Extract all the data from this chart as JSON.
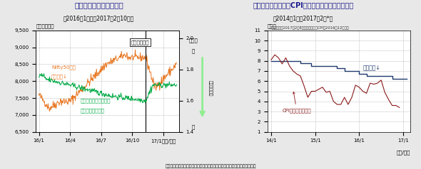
{
  "chart1": {
    "title": "インドの株価指数の推移",
    "subtitle": "（2016年1月初～2017年2月10日）",
    "annotation": "高額紙幣廃止",
    "vline_x": 10.3,
    "nifty_label_line1": "Nifty50指数",
    "nifty_label_line2": "（左軸）↓",
    "rupee_label_line1": "ご参考：インドルピー",
    "rupee_label_line2": "（対円）（右軸）",
    "ylabel_left": "（ポイント）",
    "ylabel_right": "（円）",
    "arrow_label": "インドルピー",
    "arrow_high": "高",
    "arrow_low": "安",
    "xticks": [
      "16/1",
      "16/4",
      "16/7",
      "16/10",
      "17/1（年/月）"
    ],
    "xtick_vals": [
      0,
      3,
      6,
      9,
      12
    ],
    "ylim_left": [
      6500,
      9500
    ],
    "ylim_right": [
      1.4,
      2.05
    ],
    "yticks_left": [
      6500,
      7000,
      7500,
      8000,
      8500,
      9000,
      9500
    ],
    "yticks_right": [
      1.4,
      1.6,
      1.8,
      2.0
    ],
    "nifty_color": "#E87722",
    "rupee_color": "#00AA44",
    "footnote": "（信頼できると判断したデータをもとに日興アセットマネジメントが作成）"
  },
  "chart2": {
    "title": "インドの政策金利とCPI（消費者物価指数）の推移",
    "subtitle": "（2014年1月～2017年2月*）",
    "footnote_small": "*政策金利は2017年2月8日発表分まで、CPIは2016年12月まで",
    "policy_label": "政策金利↓",
    "cpi_label": "CPI（前年同月比）",
    "ylabel": "（％）",
    "xlabel": "（年/月）",
    "xticks": [
      "14/1",
      "15/1",
      "16/1",
      "17/1"
    ],
    "xtick_vals": [
      0,
      12,
      24,
      36
    ],
    "ylim": [
      1,
      11
    ],
    "yticks": [
      1,
      2,
      3,
      4,
      5,
      6,
      7,
      8,
      9,
      10,
      11
    ],
    "policy_color": "#1F3A6E",
    "cpi_color": "#8B1A1A",
    "policy_data_x": [
      0,
      1,
      2,
      3,
      4,
      5,
      6,
      7,
      8,
      9,
      10,
      11,
      12,
      13,
      14,
      15,
      16,
      17,
      18,
      19,
      20,
      21,
      22,
      23,
      24,
      25,
      26,
      27,
      28,
      29,
      30,
      31,
      32,
      33,
      34,
      35,
      36,
      37
    ],
    "policy_data_y": [
      8.0,
      8.0,
      8.0,
      8.0,
      8.0,
      8.0,
      8.0,
      8.0,
      7.75,
      7.75,
      7.75,
      7.5,
      7.5,
      7.5,
      7.5,
      7.5,
      7.5,
      7.5,
      7.25,
      7.25,
      7.0,
      7.0,
      7.0,
      7.0,
      6.75,
      6.75,
      6.5,
      6.5,
      6.5,
      6.5,
      6.5,
      6.5,
      6.5,
      6.25,
      6.25,
      6.25,
      6.25,
      6.25
    ],
    "cpi_data_x": [
      0,
      1,
      2,
      3,
      4,
      5,
      6,
      7,
      8,
      9,
      10,
      11,
      12,
      13,
      14,
      15,
      16,
      17,
      18,
      19,
      20,
      21,
      22,
      23,
      24,
      25,
      26,
      27,
      28,
      29,
      30,
      31,
      32,
      33,
      34,
      35
    ],
    "cpi_data_y": [
      8.1,
      8.6,
      8.3,
      7.7,
      8.3,
      7.5,
      7.0,
      6.7,
      6.5,
      5.5,
      4.4,
      5.0,
      5.0,
      5.2,
      5.4,
      4.9,
      5.0,
      4.0,
      3.7,
      3.7,
      4.4,
      3.7,
      4.4,
      5.6,
      5.4,
      5.0,
      4.8,
      5.8,
      5.7,
      5.8,
      6.1,
      4.9,
      4.2,
      3.6,
      3.6,
      3.4
    ]
  },
  "bg_color": "#e8e8e8",
  "plot_bg": "#ffffff",
  "title_color": "#1a1a8c"
}
